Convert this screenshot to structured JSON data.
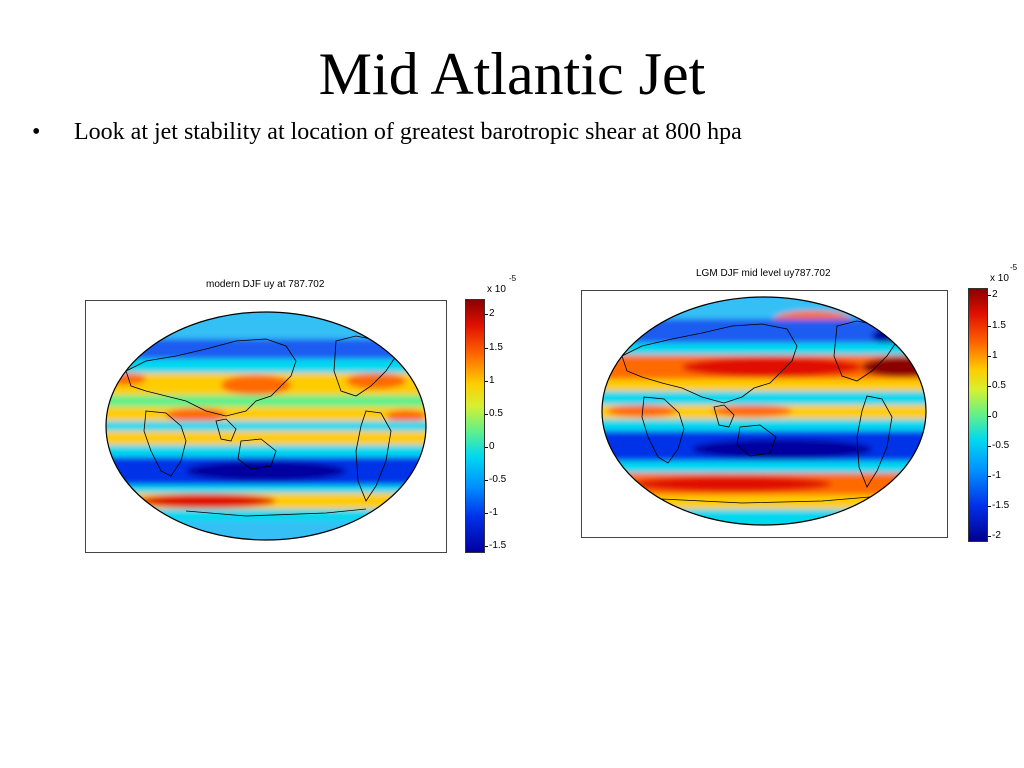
{
  "slide": {
    "title": "Mid Atlantic Jet",
    "bullet_symbol": "•",
    "bullet_text": "Look at jet stability at location of greatest barotropic shear at 800 hpa"
  },
  "figures": [
    {
      "title": "modern DJF uy at 787.702",
      "scale_base": "x 10",
      "scale_exponent": "-5",
      "colorbar_ticks": [
        "2",
        "1.5",
        "1",
        "0.5",
        "0",
        "-0.5",
        "-1",
        "-1.5"
      ]
    },
    {
      "title": "LGM DJF mid level uy787.702",
      "scale_base": "x 10",
      "scale_exponent": "-5",
      "colorbar_ticks": [
        "2",
        "1.5",
        "1",
        "0.5",
        "0",
        "-0.5",
        "-1",
        "-1.5",
        "-2"
      ]
    }
  ],
  "colors": {
    "dark_red": "#8a0000",
    "red": "#e01000",
    "orange": "#ff6a00",
    "yellow": "#ffcc00",
    "green": "#62f08a",
    "cyan": "#00d8f0",
    "blue": "#0030e8",
    "dark_blue": "#0000a0"
  }
}
